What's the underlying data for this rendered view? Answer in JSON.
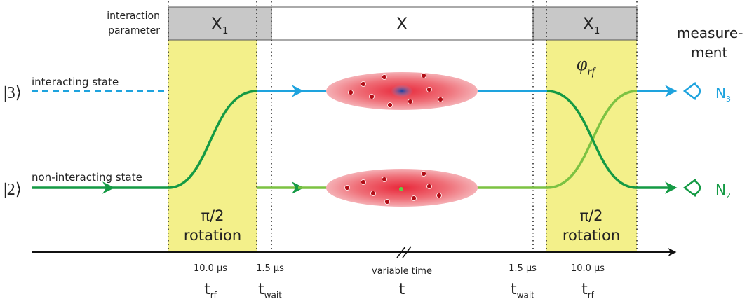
{
  "header": {
    "label": [
      "interaction",
      "parameter"
    ],
    "phases": [
      {
        "base": "X",
        "sub": "1"
      },
      {
        "base": "X",
        "sub": ""
      },
      {
        "base": "X",
        "sub": "1"
      }
    ]
  },
  "measurement": [
    "measure-",
    "ment"
  ],
  "states": [
    {
      "ket": "|3⟩",
      "label": "interacting state",
      "detector": {
        "base": "N",
        "sub": "3"
      }
    },
    {
      "ket": "|2⟩",
      "label": "non-interacting state",
      "detector": {
        "base": "N",
        "sub": "2"
      }
    }
  ],
  "phase": {
    "base": "φ",
    "sub": "rf"
  },
  "pulses": [
    {
      "angle": "π/2",
      "label": "rotation"
    },
    {
      "angle": "π/2",
      "label": "rotation"
    }
  ],
  "timeline": [
    {
      "duration": "10.0 µs",
      "symbol": {
        "base": "t",
        "sub": "rf"
      }
    },
    {
      "duration": "1.5 µs",
      "symbol": {
        "base": "t",
        "sub": "wait"
      }
    },
    {
      "duration": "variable time",
      "symbol": {
        "base": "t",
        "sub": ""
      }
    },
    {
      "duration": "1.5 µs",
      "symbol": {
        "base": "t",
        "sub": "wait"
      }
    },
    {
      "duration": "10.0 µs",
      "symbol": {
        "base": "t",
        "sub": "rf"
      }
    }
  ]
}
